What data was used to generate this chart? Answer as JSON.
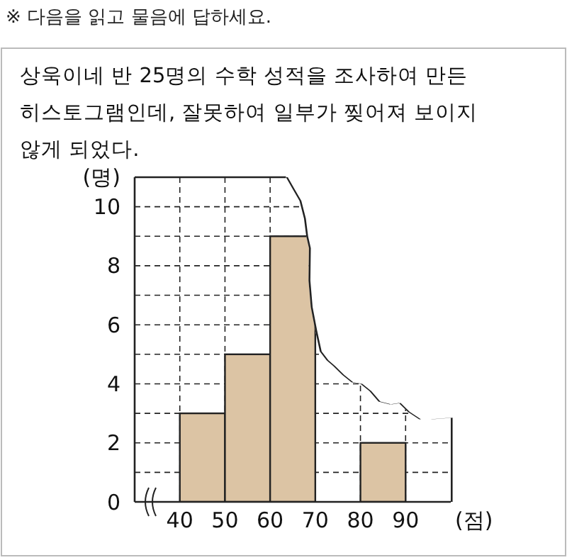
{
  "chart_data": {
    "type": "histogram",
    "title": "상욱이네 반 25명의 수학 성적을 조사하여 만든 히스토그램인데, 잘못하여 일부가 찢어져 보이지 않게 되었다.",
    "annotations": [
      "※ 다음을 읽고 물음에 답하세요."
    ],
    "ylabel": "(명)",
    "xlabel": "(점)",
    "bins": [
      40,
      50,
      60,
      70,
      80,
      90
    ],
    "values": [
      3,
      5,
      9,
      null,
      2
    ],
    "color": "#dcc4a4",
    "xlim": [
      30,
      100
    ],
    "xticks": [
      40,
      50,
      60,
      70,
      80,
      90
    ],
    "ylim": [
      0,
      11
    ],
    "yticks": [
      0,
      {
        "value": 1,
        "label": null
      },
      2,
      {
        "value": 3,
        "label": null
      },
      4,
      {
        "value": 5,
        "label": null
      },
      6,
      {
        "value": 7,
        "label": null
      },
      8,
      {
        "value": 9,
        "label": null
      },
      10
    ],
    "grid": true
  }
}
